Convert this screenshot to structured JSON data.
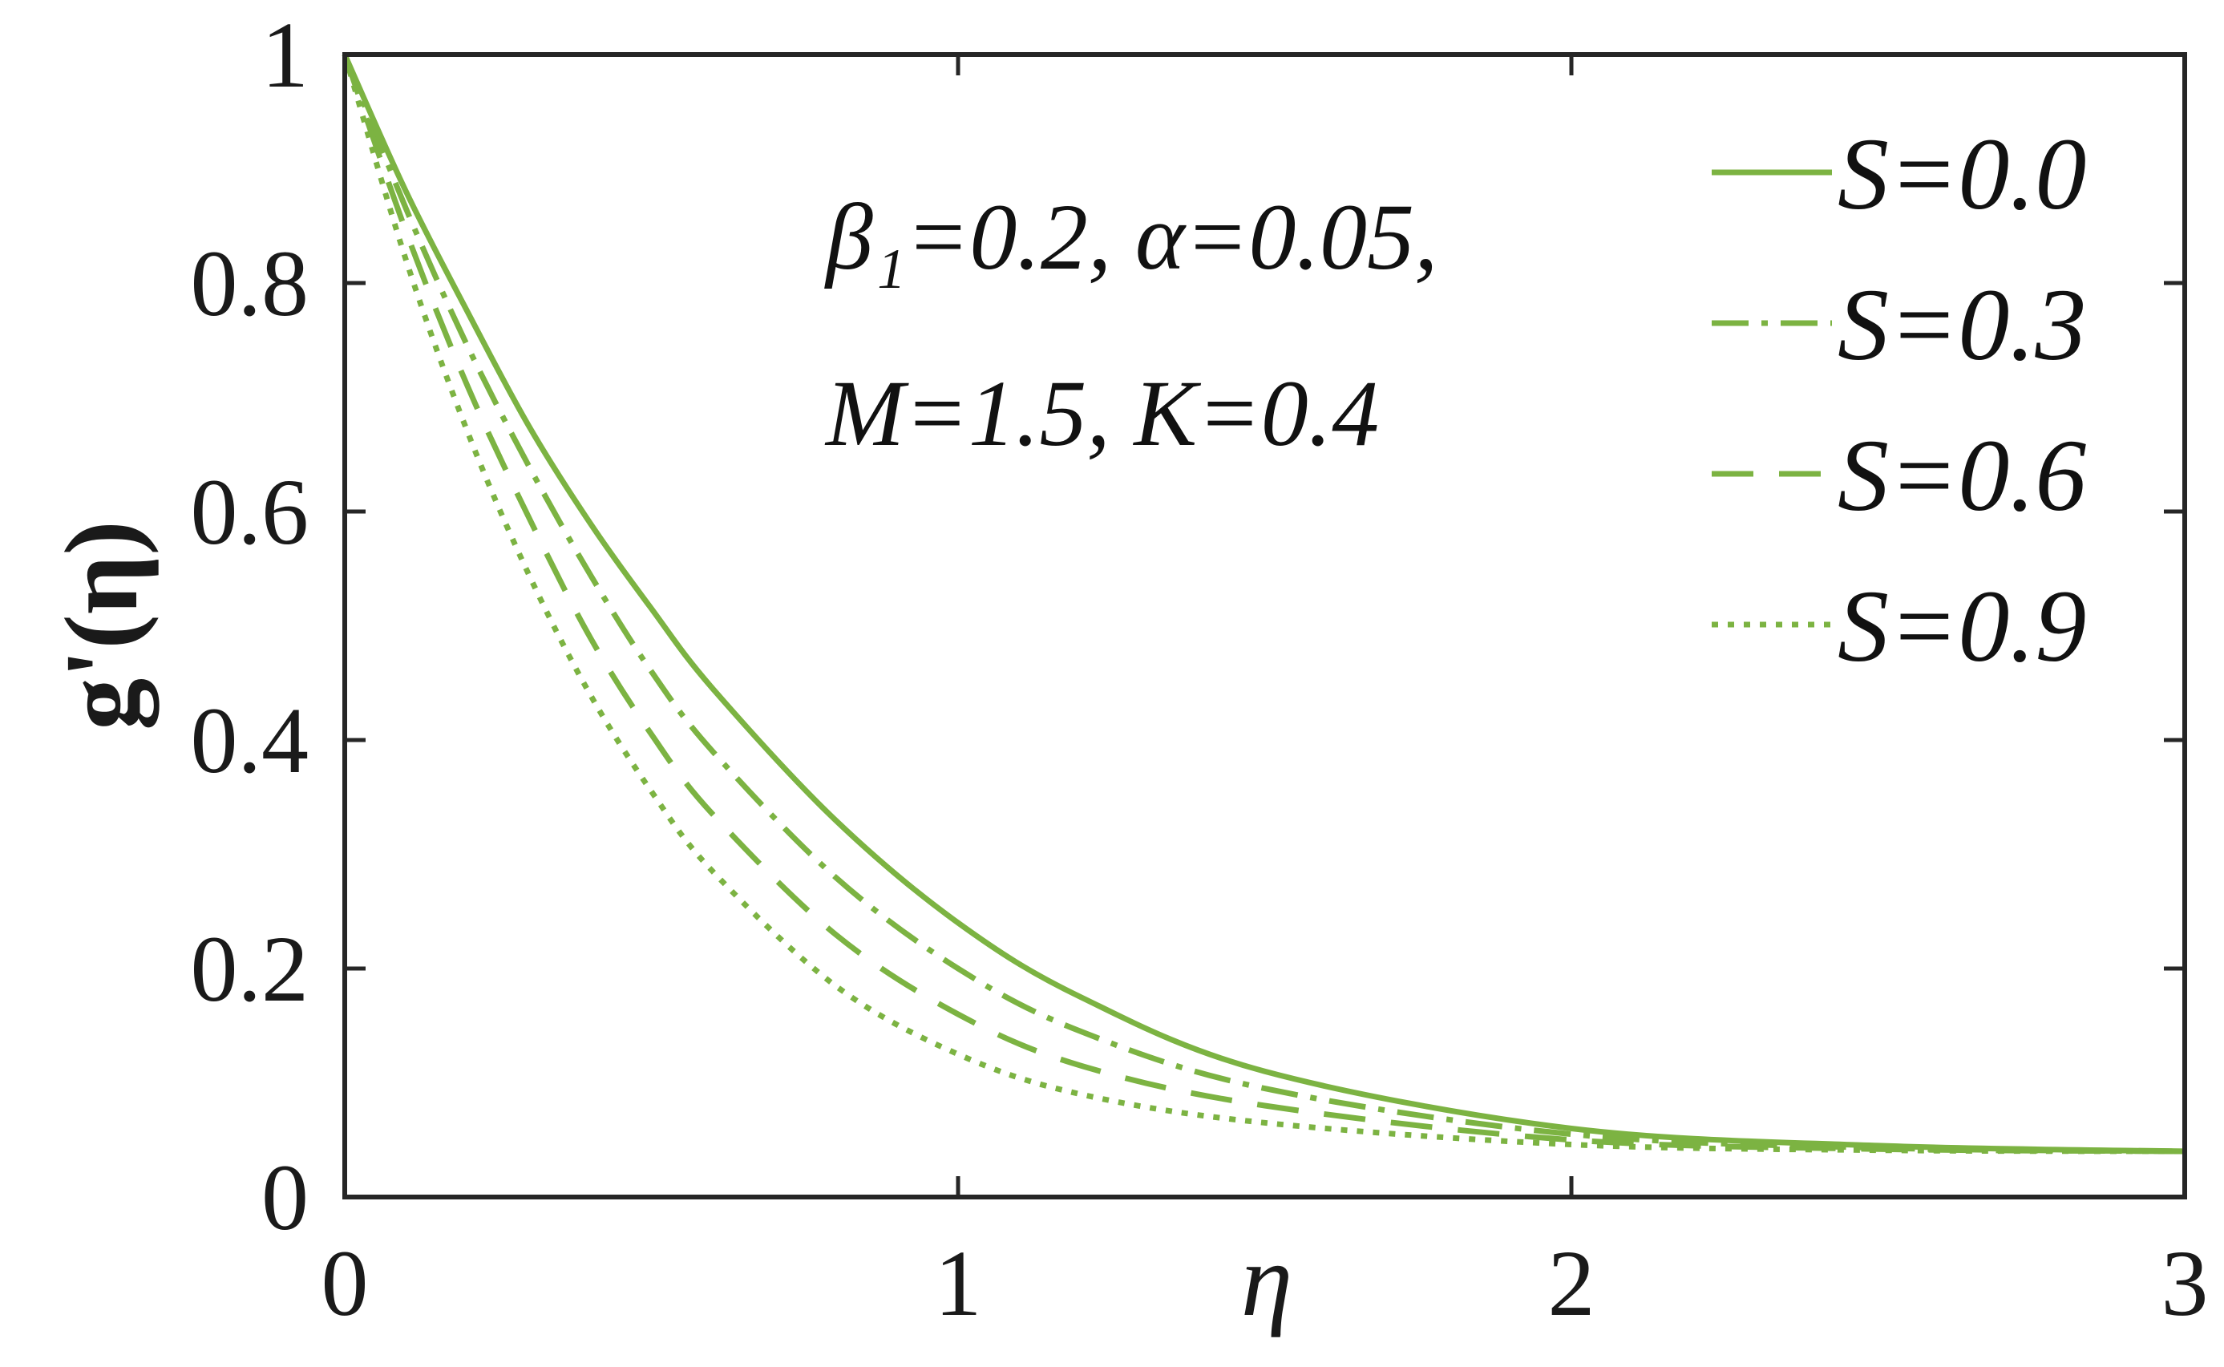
{
  "chart_data": {
    "type": "line",
    "xlabel": "η",
    "ylabel": "g'(η)",
    "xlim": [
      0,
      3
    ],
    "ylim": [
      0,
      1
    ],
    "x_ticks": [
      "0",
      "1",
      "2",
      "3"
    ],
    "y_ticks": [
      "0",
      "0.2",
      "0.4",
      "0.6",
      "0.8",
      "1"
    ],
    "annotation_lines": [
      "β₁=0.2, α=0.05,",
      "M=1.5, K=0.4"
    ],
    "legend_position": "top-right",
    "grid": false,
    "line_color": "#7cb342",
    "x": [
      0,
      0.1,
      0.2,
      0.3,
      0.4,
      0.5,
      0.6,
      0.8,
      1.0,
      1.2,
      1.5,
      2.0,
      2.5,
      3.0
    ],
    "series": [
      {
        "name": "S=0.0",
        "style": "solid",
        "values": [
          1.0,
          0.88,
          0.775,
          0.675,
          0.59,
          0.515,
          0.445,
          0.33,
          0.24,
          0.175,
          0.11,
          0.06,
          0.045,
          0.04
        ]
      },
      {
        "name": "S=0.3",
        "style": "dashdot",
        "values": [
          1.0,
          0.865,
          0.745,
          0.64,
          0.545,
          0.46,
          0.39,
          0.28,
          0.2,
          0.145,
          0.095,
          0.055,
          0.043,
          0.04
        ]
      },
      {
        "name": "S=0.6",
        "style": "dashed",
        "values": [
          1.0,
          0.845,
          0.71,
          0.595,
          0.49,
          0.405,
          0.335,
          0.23,
          0.16,
          0.115,
          0.08,
          0.05,
          0.042,
          0.04
        ]
      },
      {
        "name": "S=0.9",
        "style": "dotted",
        "values": [
          1.0,
          0.82,
          0.67,
          0.545,
          0.44,
          0.355,
          0.285,
          0.185,
          0.125,
          0.09,
          0.065,
          0.046,
          0.041,
          0.04
        ]
      }
    ]
  }
}
